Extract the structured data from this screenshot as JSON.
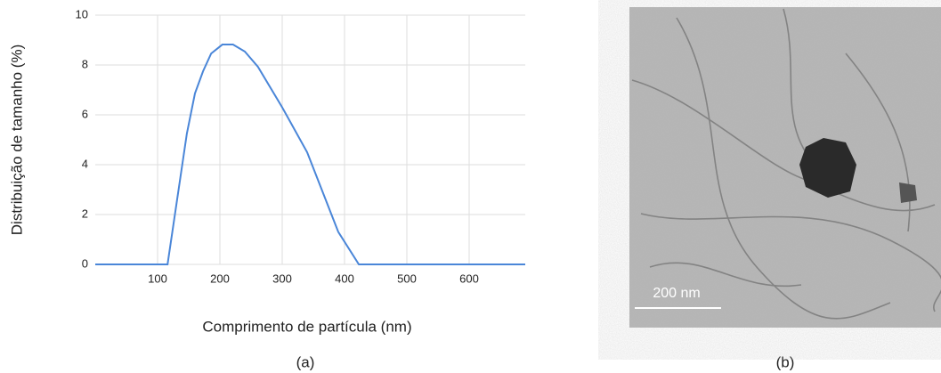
{
  "chart_data": {
    "type": "line",
    "x_label": "Comprimento de partícula (nm)",
    "y_label": "Distribuição de tamanho (%)",
    "x": [
      0,
      116,
      147,
      160,
      173,
      186,
      204,
      221,
      240,
      261,
      300,
      340,
      390,
      423,
      690
    ],
    "values": [
      0,
      0,
      5.25,
      6.86,
      7.75,
      8.46,
      8.82,
      8.82,
      8.54,
      7.93,
      6.3,
      4.5,
      1.3,
      0,
      0
    ],
    "color": "#4a86d8",
    "xlim": [
      0,
      690
    ],
    "xticks": [
      100,
      200,
      300,
      400,
      500,
      600
    ],
    "ylim": [
      0,
      10
    ],
    "yticks": [
      0,
      2,
      4,
      6,
      8,
      10
    ],
    "grid": true
  },
  "image": {
    "scale_bar": "200 nm"
  },
  "captions": [
    "(a)",
    "(b)"
  ]
}
